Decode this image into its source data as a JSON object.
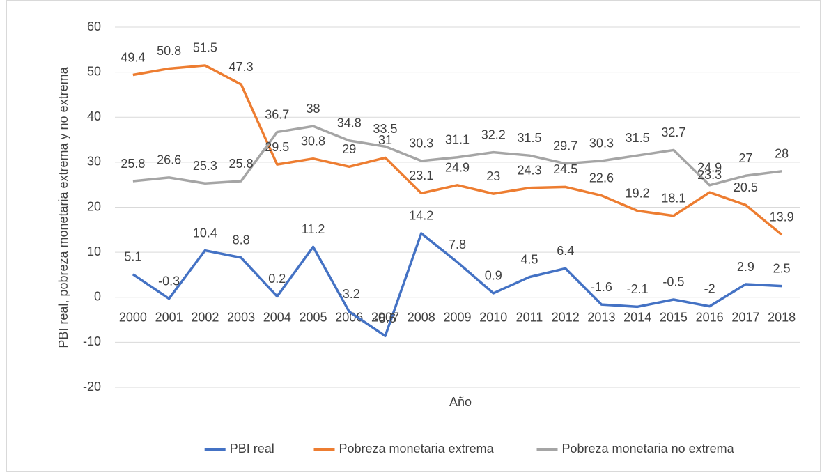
{
  "chart_data": {
    "type": "line",
    "x_label": "Año",
    "y_label": "PBI real, pobreza monetaria extrema y no extrema",
    "categories": [
      "2000",
      "2001",
      "2002",
      "2003",
      "2004",
      "2005",
      "2006",
      "2007",
      "2008",
      "2009",
      "2010",
      "2011",
      "2012",
      "2013",
      "2014",
      "2015",
      "2016",
      "2017",
      "2018"
    ],
    "series": [
      {
        "name": "PBI real",
        "color": "#4472c4",
        "values": [
          5.1,
          -0.3,
          10.4,
          8.8,
          0.2,
          11.2,
          -3.2,
          -8.6,
          14.2,
          7.8,
          0.9,
          4.5,
          6.4,
          -1.6,
          -2.1,
          -0.5,
          -2,
          2.9,
          2.5
        ]
      },
      {
        "name": "Pobreza monetaria extrema",
        "color": "#ed7d31",
        "values": [
          49.4,
          50.8,
          51.5,
          47.3,
          29.5,
          30.8,
          29,
          31,
          23.1,
          24.9,
          23,
          24.3,
          24.5,
          22.6,
          19.2,
          18.1,
          23.3,
          20.5,
          13.9
        ]
      },
      {
        "name": "Pobreza monetaria no extrema",
        "color": "#a5a5a5",
        "values": [
          25.8,
          26.6,
          25.3,
          25.8,
          36.7,
          38,
          34.8,
          33.5,
          30.3,
          31.1,
          32.2,
          31.5,
          29.7,
          30.3,
          31.5,
          32.7,
          24.9,
          27,
          28
        ]
      }
    ],
    "ylim": [
      -20,
      60
    ],
    "yticks": [
      -20,
      -10,
      0,
      10,
      20,
      30,
      40,
      50,
      60
    ],
    "grid": true,
    "legend": "bottom",
    "data_labels": true
  }
}
